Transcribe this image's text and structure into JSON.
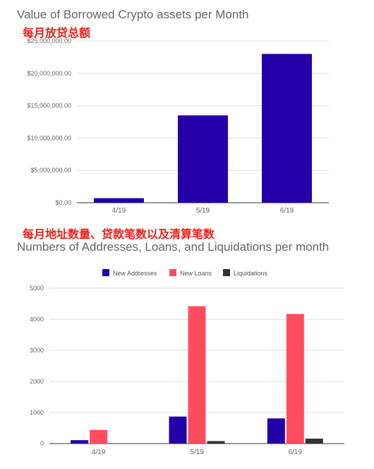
{
  "chart_data": [
    {
      "type": "bar",
      "title": "Value of Borrowed Crypto assets per Month",
      "subtitle": "每月放贷总额",
      "categories": [
        "4/19",
        "5/19",
        "6/19"
      ],
      "series": [
        {
          "values": [
            700000,
            13500000,
            23000000
          ],
          "color": "#2400a8"
        }
      ],
      "ylim": [
        0,
        25000000
      ],
      "yticks": [
        "$0.00",
        "$5,000,000.00",
        "$10,000,000.00",
        "$15,000,000.00",
        "$20,000,000.00",
        "$25,000,000.00"
      ],
      "grid": true,
      "legend": "none"
    },
    {
      "type": "bar",
      "title": "Numbers of Addresses, Loans, and Liquidations per month",
      "subtitle": "每月地址数量、贷款笔数以及清算笔数",
      "categories": [
        "4/19",
        "5/19",
        "6/19"
      ],
      "series": [
        {
          "name": "New Addresses",
          "values": [
            110,
            870,
            810
          ],
          "color": "#2400a8"
        },
        {
          "name": "New Loans",
          "values": [
            440,
            4420,
            4170
          ],
          "color": "#ff4d5e"
        },
        {
          "name": "Liquidations",
          "values": [
            0,
            80,
            160
          ],
          "color": "#333333"
        }
      ],
      "ylim": [
        0,
        5000
      ],
      "yticks": [
        "0",
        "1000",
        "2000",
        "3000",
        "4000",
        "5000"
      ],
      "grid": true,
      "legend": "top"
    }
  ]
}
